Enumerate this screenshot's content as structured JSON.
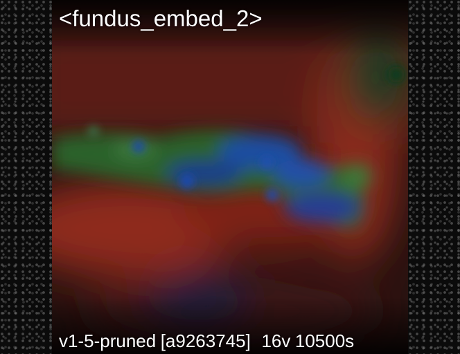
{
  "preview": {
    "title": "<fundus_embed_2>",
    "model_name": "v1-5-pruned",
    "model_hash": "[a9263745]",
    "vectors": "16v",
    "steps": "10500s"
  }
}
